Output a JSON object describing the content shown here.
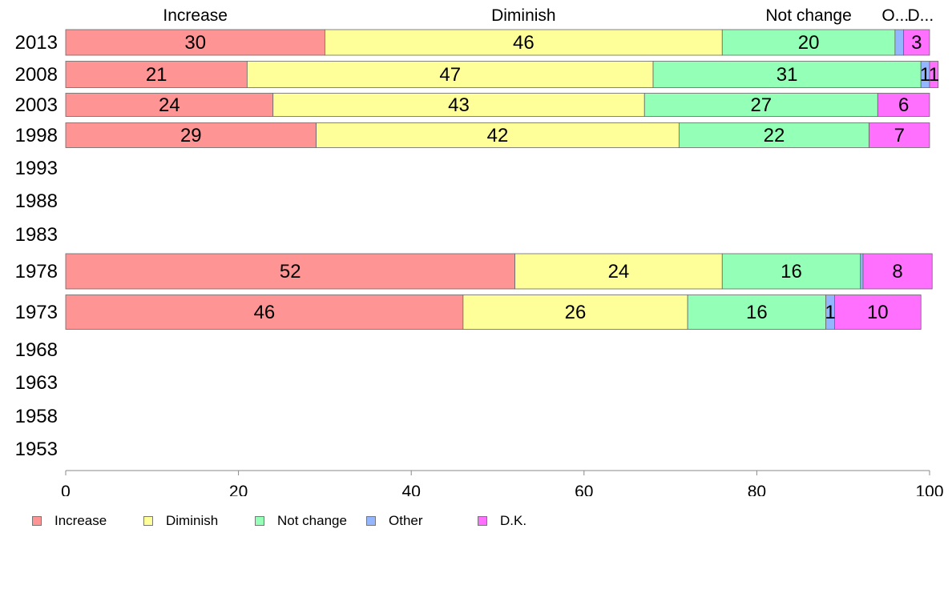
{
  "chart_data": {
    "type": "bar",
    "orientation": "horizontal",
    "stacked": true,
    "categories": [
      "2013",
      "2008",
      "2003",
      "1998",
      "1993",
      "1988",
      "1983",
      "1978",
      "1973",
      "1968",
      "1963",
      "1958",
      "1953"
    ],
    "series": [
      {
        "name": "Increase",
        "color": "#ff9494",
        "values": [
          30,
          21,
          24,
          29,
          null,
          null,
          null,
          52,
          46,
          null,
          null,
          null,
          null
        ]
      },
      {
        "name": "Diminish",
        "color": "#ffff99",
        "values": [
          46,
          47,
          43,
          42,
          null,
          null,
          null,
          24,
          26,
          null,
          null,
          null,
          null
        ]
      },
      {
        "name": "Not change",
        "color": "#94ffb6",
        "values": [
          20,
          31,
          27,
          22,
          null,
          null,
          null,
          16,
          16,
          null,
          null,
          null,
          null
        ]
      },
      {
        "name": "Other",
        "color": "#94b6ff",
        "values": [
          1,
          1,
          0,
          0,
          null,
          null,
          null,
          0.3,
          1,
          null,
          null,
          null,
          null
        ]
      },
      {
        "name": "D.K.",
        "color": "#ff70ff",
        "values": [
          3,
          1,
          6,
          7,
          null,
          null,
          null,
          8,
          10,
          null,
          null,
          null,
          null
        ]
      }
    ],
    "segment_labels": [
      [
        "30",
        "46",
        "20",
        "",
        "3"
      ],
      [
        "21",
        "47",
        "31",
        "1",
        "1"
      ],
      [
        "24",
        "43",
        "27",
        "",
        "6"
      ],
      [
        "29",
        "42",
        "22",
        "",
        "7"
      ],
      [],
      [],
      [],
      [
        "52",
        "24",
        "16",
        "",
        "8"
      ],
      [
        "46",
        "26",
        "16",
        "1",
        "10"
      ],
      [],
      [],
      [],
      []
    ],
    "top_labels": [
      "Increase",
      "Diminish",
      "Not change",
      "O...",
      "D..."
    ],
    "xlim": [
      0,
      100
    ],
    "xticks": [
      "0",
      "20",
      "40",
      "60",
      "80",
      "100"
    ],
    "legend_position": "bottom",
    "grid": false,
    "title": "",
    "xlabel": "",
    "ylabel": ""
  }
}
